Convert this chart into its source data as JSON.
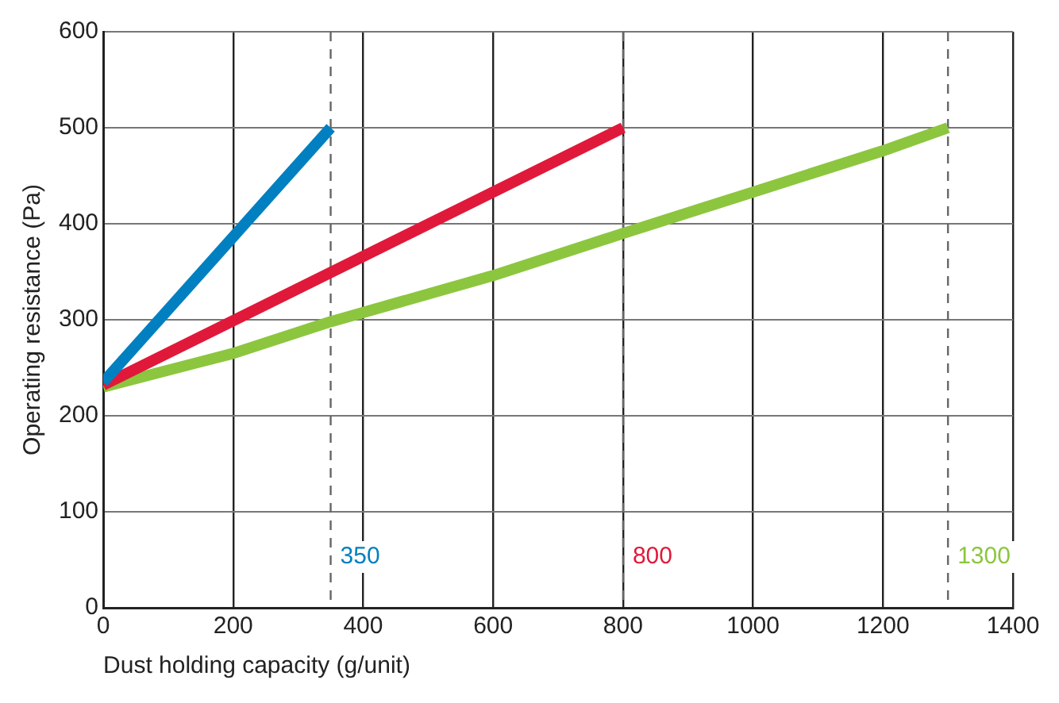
{
  "chart_data": {
    "type": "line",
    "xlabel": "Dust holding capacity (g/unit)",
    "ylabel": "Operating resistance (Pa)",
    "xlim": [
      0,
      1400
    ],
    "xticks": [
      0,
      200,
      400,
      600,
      800,
      1000,
      1200,
      1400
    ],
    "ylim": [
      0,
      600
    ],
    "yticks": [
      0,
      100,
      200,
      300,
      400,
      500,
      600
    ],
    "grid": true,
    "marker": "none",
    "line_style": "solid",
    "series": [
      {
        "color": "#0080c0",
        "x": [
          0,
          350
        ],
        "values": [
          235,
          500
        ]
      },
      {
        "color": "#e0193a",
        "x": [
          0,
          800
        ],
        "values": [
          232,
          500
        ]
      },
      {
        "color": "#8cc63f",
        "x": [
          0,
          200,
          350,
          600,
          800,
          1000,
          1200,
          1300
        ],
        "values": [
          230,
          265,
          298,
          346,
          390,
          433,
          476,
          500
        ]
      }
    ],
    "ref_lines": [
      {
        "axis": "x",
        "value": 350,
        "label": "350",
        "line_style": "dashed"
      },
      {
        "axis": "x",
        "value": 800,
        "label": "800",
        "line_style": "dashed"
      },
      {
        "axis": "x",
        "value": 1300,
        "label": "1300",
        "line_style": "dashed"
      }
    ]
  }
}
